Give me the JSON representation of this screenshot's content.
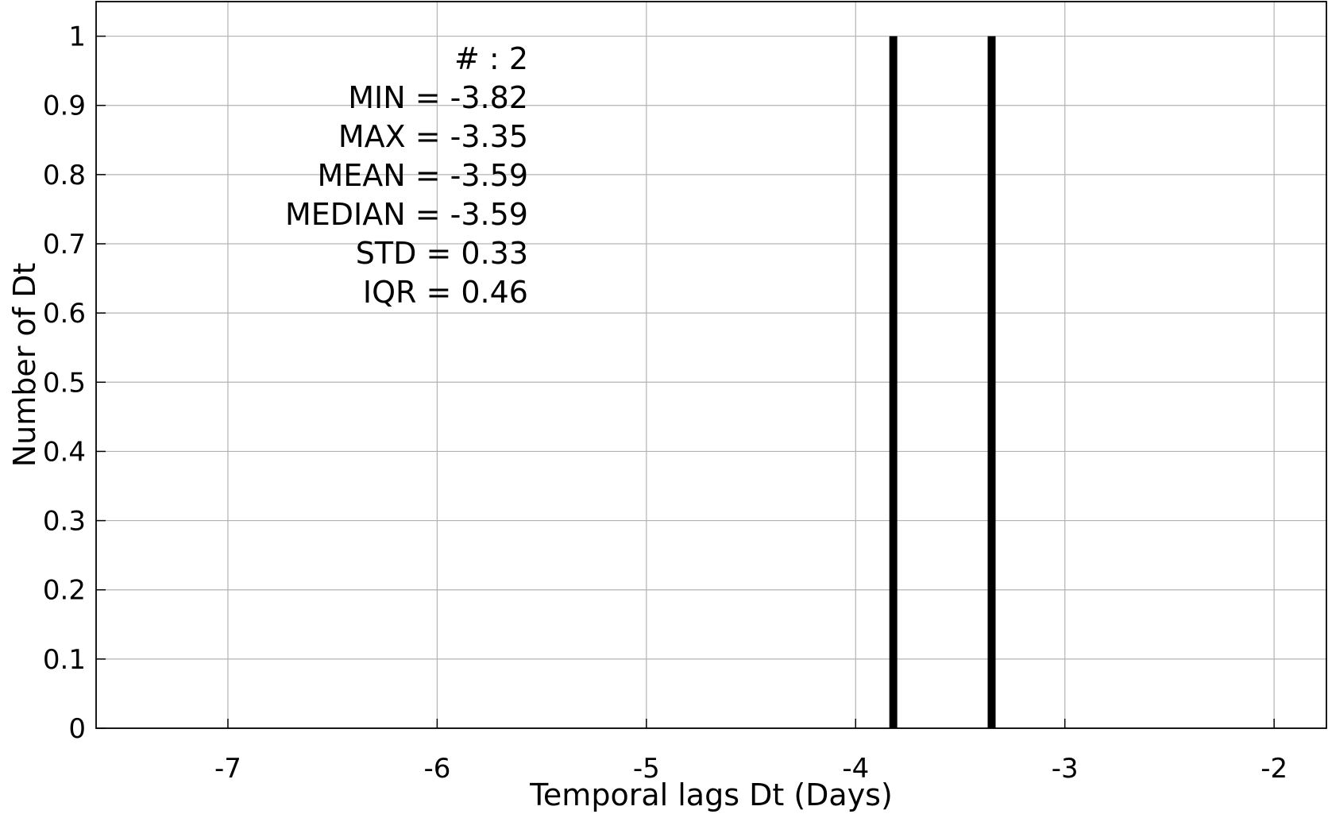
{
  "chart_data": {
    "type": "bar",
    "xlabel": "Temporal lags Dt (Days)",
    "ylabel": "Number of Dt",
    "xlim": [
      -7.63,
      -1.75
    ],
    "ylim": [
      0,
      1.05
    ],
    "xticks": [
      -7,
      -6,
      -5,
      -4,
      -3,
      -2
    ],
    "yticks": [
      0,
      0.1,
      0.2,
      0.3,
      0.4,
      0.5,
      0.6,
      0.7,
      0.8,
      0.9,
      1
    ],
    "grid": true,
    "x": [
      -3.82,
      -3.35
    ],
    "values": [
      1,
      1
    ],
    "color": "#000000",
    "annotations": [
      "# : 2",
      "MIN = -3.82",
      "MAX =  -3.35",
      "MEAN = -3.59",
      "MEDIAN = -3.59",
      "STD = 0.33",
      "IQR = 0.46"
    ]
  }
}
